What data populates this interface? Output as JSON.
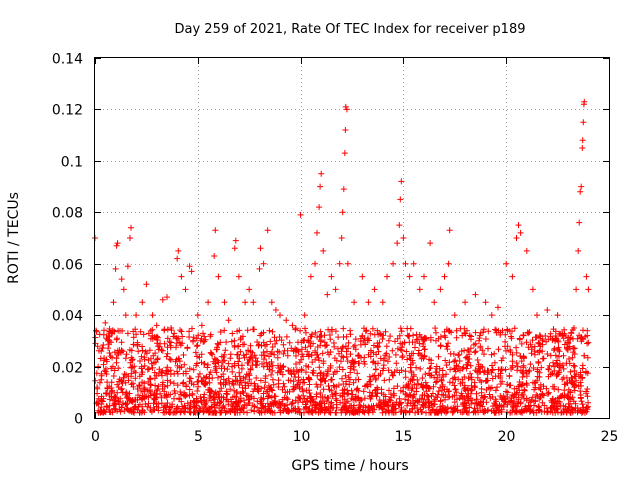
{
  "chart_data": {
    "type": "scatter",
    "title": "Day 259 of 2021, Rate Of TEC Index for receiver p189",
    "xlabel": "GPS time / hours",
    "ylabel": "ROTI / TECUs",
    "xlim": [
      0,
      25
    ],
    "ylim": [
      0,
      0.14
    ],
    "x_ticks": [
      0,
      5,
      10,
      15,
      20,
      25
    ],
    "x_tick_labels": [
      "0",
      "5",
      "10",
      "15",
      "20",
      "25"
    ],
    "y_ticks": [
      0,
      0.02,
      0.04,
      0.06,
      0.08,
      0.1,
      0.12,
      0.14
    ],
    "y_tick_labels": [
      "0",
      "0.02",
      "0.04",
      "0.06",
      "0.08",
      "0.1",
      "0.12",
      "0.14"
    ],
    "grid": true,
    "marker": "plus",
    "color": "#ff0000",
    "series": [
      {
        "name": "ROTI",
        "points": [
          [
            0.0,
            0.07
          ],
          [
            0.05,
            0.034
          ],
          [
            0.1,
            0.012
          ],
          [
            0.15,
            0.02
          ],
          [
            0.3,
            0.026
          ],
          [
            0.5,
            0.037
          ],
          [
            0.7,
            0.03
          ],
          [
            0.9,
            0.045
          ],
          [
            1.0,
            0.058
          ],
          [
            1.05,
            0.067
          ],
          [
            1.1,
            0.068
          ],
          [
            1.3,
            0.054
          ],
          [
            1.4,
            0.05
          ],
          [
            1.5,
            0.04
          ],
          [
            1.6,
            0.059
          ],
          [
            1.7,
            0.07
          ],
          [
            1.75,
            0.074
          ],
          [
            2.0,
            0.04
          ],
          [
            2.3,
            0.045
          ],
          [
            2.5,
            0.052
          ],
          [
            2.8,
            0.04
          ],
          [
            3.0,
            0.036
          ],
          [
            3.3,
            0.046
          ],
          [
            3.5,
            0.047
          ],
          [
            3.7,
            0.035
          ],
          [
            4.0,
            0.062
          ],
          [
            4.05,
            0.065
          ],
          [
            4.2,
            0.055
          ],
          [
            4.4,
            0.05
          ],
          [
            4.6,
            0.059
          ],
          [
            4.7,
            0.057
          ],
          [
            5.0,
            0.04
          ],
          [
            5.2,
            0.036
          ],
          [
            5.5,
            0.045
          ],
          [
            5.8,
            0.063
          ],
          [
            5.85,
            0.073
          ],
          [
            6.0,
            0.055
          ],
          [
            6.3,
            0.045
          ],
          [
            6.5,
            0.038
          ],
          [
            6.8,
            0.066
          ],
          [
            6.85,
            0.069
          ],
          [
            7.0,
            0.055
          ],
          [
            7.3,
            0.045
          ],
          [
            7.5,
            0.05
          ],
          [
            7.7,
            0.045
          ],
          [
            8.0,
            0.058
          ],
          [
            8.05,
            0.066
          ],
          [
            8.2,
            0.06
          ],
          [
            8.4,
            0.073
          ],
          [
            8.6,
            0.045
          ],
          [
            8.8,
            0.042
          ],
          [
            9.0,
            0.04
          ],
          [
            9.3,
            0.038
          ],
          [
            9.6,
            0.036
          ],
          [
            10.0,
            0.079
          ],
          [
            10.2,
            0.04
          ],
          [
            10.5,
            0.055
          ],
          [
            10.7,
            0.06
          ],
          [
            10.8,
            0.072
          ],
          [
            10.9,
            0.082
          ],
          [
            10.95,
            0.09
          ],
          [
            11.0,
            0.095
          ],
          [
            11.1,
            0.065
          ],
          [
            11.3,
            0.048
          ],
          [
            11.5,
            0.055
          ],
          [
            11.7,
            0.05
          ],
          [
            11.9,
            0.06
          ],
          [
            12.0,
            0.07
          ],
          [
            12.05,
            0.08
          ],
          [
            12.1,
            0.089
          ],
          [
            12.15,
            0.103
          ],
          [
            12.18,
            0.112
          ],
          [
            12.2,
            0.121
          ],
          [
            12.25,
            0.12
          ],
          [
            12.3,
            0.06
          ],
          [
            12.6,
            0.045
          ],
          [
            13.0,
            0.055
          ],
          [
            13.3,
            0.045
          ],
          [
            13.6,
            0.05
          ],
          [
            14.0,
            0.045
          ],
          [
            14.2,
            0.055
          ],
          [
            14.5,
            0.06
          ],
          [
            14.7,
            0.068
          ],
          [
            14.8,
            0.075
          ],
          [
            14.85,
            0.085
          ],
          [
            14.9,
            0.092
          ],
          [
            15.0,
            0.07
          ],
          [
            15.1,
            0.06
          ],
          [
            15.3,
            0.055
          ],
          [
            15.5,
            0.06
          ],
          [
            15.8,
            0.05
          ],
          [
            16.0,
            0.055
          ],
          [
            16.3,
            0.068
          ],
          [
            16.5,
            0.045
          ],
          [
            16.8,
            0.05
          ],
          [
            17.0,
            0.055
          ],
          [
            17.2,
            0.06
          ],
          [
            17.25,
            0.073
          ],
          [
            17.5,
            0.04
          ],
          [
            18.0,
            0.045
          ],
          [
            18.5,
            0.048
          ],
          [
            19.0,
            0.045
          ],
          [
            19.3,
            0.04
          ],
          [
            19.6,
            0.043
          ],
          [
            20.0,
            0.06
          ],
          [
            20.3,
            0.055
          ],
          [
            20.5,
            0.07
          ],
          [
            20.6,
            0.075
          ],
          [
            20.7,
            0.072
          ],
          [
            21.0,
            0.065
          ],
          [
            21.3,
            0.05
          ],
          [
            21.5,
            0.04
          ],
          [
            22.0,
            0.042
          ],
          [
            22.5,
            0.04
          ],
          [
            23.0,
            0.03
          ],
          [
            23.3,
            0.035
          ],
          [
            23.4,
            0.05
          ],
          [
            23.5,
            0.065
          ],
          [
            23.55,
            0.076
          ],
          [
            23.6,
            0.088
          ],
          [
            23.65,
            0.09
          ],
          [
            23.7,
            0.105
          ],
          [
            23.72,
            0.108
          ],
          [
            23.75,
            0.115
          ],
          [
            23.78,
            0.122
          ],
          [
            23.8,
            0.123
          ],
          [
            23.9,
            0.055
          ],
          [
            24.0,
            0.05
          ]
        ]
      }
    ],
    "dense_band": {
      "description_note": "Dense cloud of points filling roughly 0.002-0.035 across the whole day",
      "x_range": [
        0,
        24
      ],
      "y_range": [
        0.002,
        0.035
      ]
    }
  }
}
